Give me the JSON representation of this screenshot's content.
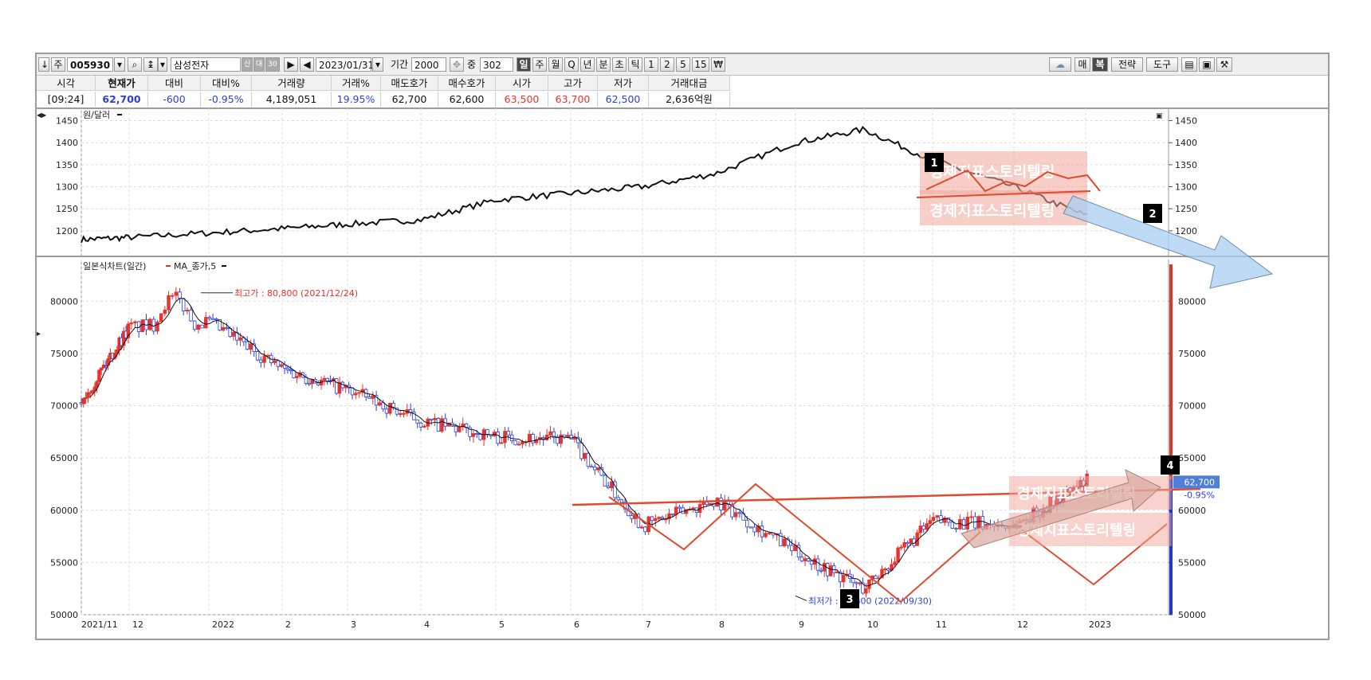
{
  "toolbar": {
    "stock_code": "005930",
    "stock_name": "삼성전자",
    "date": "2023/01/31",
    "period_label": "기간",
    "period_value": "2000",
    "middle_label": "중",
    "middle_value": "302",
    "intervals": [
      "일",
      "주",
      "월",
      "Q",
      "년",
      "분",
      "초",
      "틱",
      "1",
      "2",
      "5",
      "15",
      "₩"
    ],
    "active_interval": "일",
    "right_buttons": [
      "매",
      "복",
      "전략",
      "도구"
    ],
    "small_glyphs": [
      "↓",
      "주",
      "신",
      "대",
      "30"
    ]
  },
  "quote": {
    "headers": [
      "시각",
      "현재가",
      "대비",
      "대비%",
      "거래량",
      "거래%",
      "매도호가",
      "매수호가",
      "시가",
      "고가",
      "저가",
      "거래대금"
    ],
    "values": [
      "[09:24]",
      "62,700",
      "-600",
      "-0.95%",
      "4,189,051",
      "19.95%",
      "62,700",
      "62,600",
      "63,500",
      "63,700",
      "62,500",
      "2,636억원"
    ]
  },
  "watermark": "경제지표스토리텔링",
  "colors": {
    "up": "#e8322a",
    "down": "#2b3fe0",
    "line": "#111111",
    "annotation": "#e04a2e",
    "arrow": "#a9cdf0"
  },
  "chart_data": [
    {
      "type": "line",
      "title": "원/달러",
      "x_range": [
        "2021/11",
        "2023/01"
      ],
      "ylim": [
        1160,
        1460
      ],
      "yticks": [
        1200,
        1250,
        1300,
        1350,
        1400,
        1450
      ],
      "x": [
        "2021/11",
        "2021/12",
        "2022/01",
        "2022/02",
        "2022/03",
        "2022/04",
        "2022/05",
        "2022/06",
        "2022/07",
        "2022/08",
        "2022/09",
        "2022/10",
        "2022/11",
        "2022/12",
        "2023/01"
      ],
      "series": [
        {
          "values": [
            1180,
            1185,
            1195,
            1205,
            1215,
            1225,
            1270,
            1285,
            1300,
            1330,
            1400,
            1430,
            1360,
            1300,
            1235
          ]
        }
      ],
      "annotations": [
        {
          "label": "1",
          "meaning": "multiple top"
        },
        {
          "label": "2",
          "meaning": "down trend"
        }
      ]
    },
    {
      "type": "candlestick",
      "title": "일본식차트(일간)",
      "legend": [
        "MA_종가,5"
      ],
      "ylim": [
        50000,
        82000
      ],
      "yticks": [
        50000,
        55000,
        60000,
        65000,
        70000,
        75000,
        80000
      ],
      "xticks": [
        "2021/11",
        "12",
        "2022",
        "2",
        "3",
        "4",
        "5",
        "6",
        "7",
        "8",
        "9",
        "10",
        "11",
        "12",
        "2023"
      ],
      "x": [
        "2021/11",
        "2021/12",
        "2022/01",
        "2022/02",
        "2022/03",
        "2022/04",
        "2022/05",
        "2022/06",
        "2022/07",
        "2022/08",
        "2022/09",
        "2022/10",
        "2022/11",
        "2022/12",
        "2023/01"
      ],
      "close_approx": [
        70500,
        77500,
        78000,
        73500,
        71500,
        68500,
        67000,
        66800,
        58500,
        61000,
        56000,
        52500,
        59000,
        58500,
        62700
      ],
      "high_label": "최고가 : 80,800 (2021/12/24)",
      "low_label": "최저가 : 51,800 (2022/09/30)",
      "current_price": "62,700",
      "current_change": "-0.95%",
      "annotations": [
        {
          "label": "3",
          "meaning": "inverse head and shoulders"
        },
        {
          "label": "4",
          "meaning": "neckline breakout"
        }
      ]
    }
  ]
}
